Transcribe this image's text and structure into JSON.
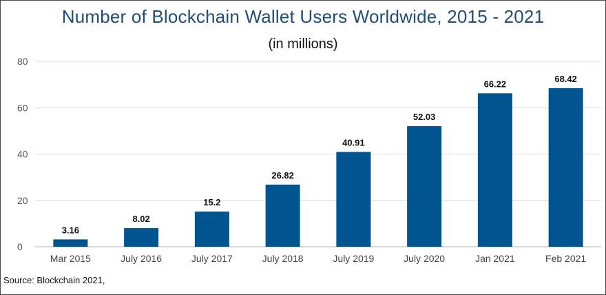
{
  "chart_data": {
    "type": "bar",
    "title": "Number of Blockchain Wallet Users Worldwide, 2015 - 2021",
    "subtitle": "(in millions)",
    "categories": [
      "Mar 2015",
      "July 2016",
      "July 2017",
      "July 2018",
      "July 2019",
      "July 2020",
      "Jan 2021",
      "Feb 2021"
    ],
    "values": [
      3.16,
      8.02,
      15.2,
      26.82,
      40.91,
      52.03,
      66.22,
      68.42
    ],
    "data_labels": [
      "3.16",
      "8.02",
      "15.2",
      "26.82",
      "40.91",
      "52.03",
      "66.22",
      "68.42"
    ],
    "ylim": [
      0,
      80
    ],
    "yticks": [
      0,
      20,
      40,
      60,
      80
    ],
    "grid": true,
    "bar_color": "#00548f",
    "xlabel": "",
    "ylabel": ""
  },
  "footer": {
    "source": "Source: Blockchain 2021,"
  },
  "colors": {
    "title": "#1f4e79",
    "gridline": "#dcdcdc",
    "axis": "#b0b0b0"
  }
}
